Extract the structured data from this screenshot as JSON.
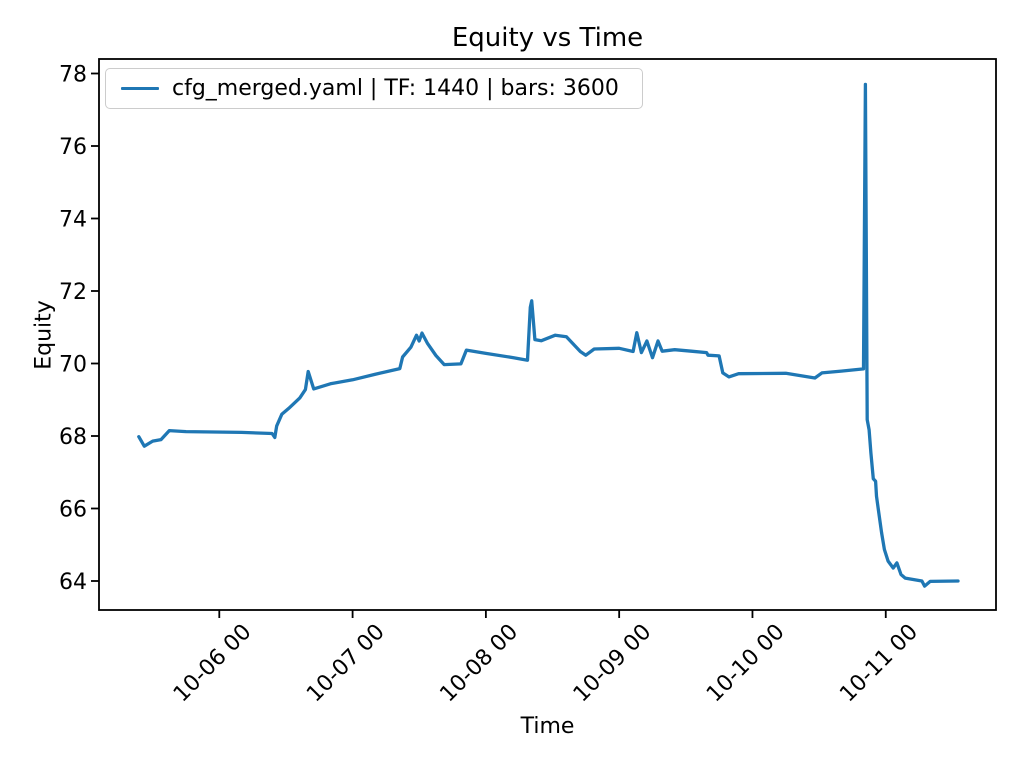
{
  "chart_data": {
    "type": "line",
    "title": "Equity vs Time",
    "xlabel": "Time",
    "ylabel": "Equity",
    "grid": false,
    "legend_position": "upper left",
    "x_tick_labels": [
      "10-06 00",
      "10-07 00",
      "10-08 00",
      "10-09 00",
      "10-10 00",
      "10-11 00"
    ],
    "y_ticks": [
      64,
      66,
      68,
      70,
      72,
      74,
      76,
      78
    ],
    "ylim": [
      63.2,
      78.4
    ],
    "xlim_hours_since_10_05_00": [
      2.34,
      163.85
    ],
    "series": [
      {
        "name": "cfg_merged.yaml | TF: 1440 | bars: 3600",
        "color": "#1f77b4",
        "line_width": 3.3,
        "points": [
          [
            "10-05 09:30",
            67.98
          ],
          [
            "10-05 10:30",
            67.72
          ],
          [
            "10-05 12:00",
            67.86
          ],
          [
            "10-05 13:30",
            67.9
          ],
          [
            "10-05 15:00",
            68.15
          ],
          [
            "10-05 18:00",
            68.12
          ],
          [
            "10-06 04:00",
            68.1
          ],
          [
            "10-06 09:30",
            68.07
          ],
          [
            "10-06 10:00",
            67.96
          ],
          [
            "10-06 10:20",
            68.28
          ],
          [
            "10-06 11:15",
            68.6
          ],
          [
            "10-06 12:30",
            68.76
          ],
          [
            "10-06 14:30",
            69.05
          ],
          [
            "10-06 15:30",
            69.28
          ],
          [
            "10-06 16:00",
            69.78
          ],
          [
            "10-06 17:00",
            69.3
          ],
          [
            "10-06 20:00",
            69.44
          ],
          [
            "10-07 00:00",
            69.55
          ],
          [
            "10-07 04:00",
            69.7
          ],
          [
            "10-07 08:30",
            69.86
          ],
          [
            "10-07 09:00",
            70.18
          ],
          [
            "10-07 10:30",
            70.45
          ],
          [
            "10-07 11:30",
            70.78
          ],
          [
            "10-07 12:00",
            70.62
          ],
          [
            "10-07 12:30",
            70.84
          ],
          [
            "10-07 13:30",
            70.55
          ],
          [
            "10-07 15:00",
            70.22
          ],
          [
            "10-07 16:30",
            69.97
          ],
          [
            "10-07 19:30",
            69.99
          ],
          [
            "10-07 20:30",
            70.37
          ],
          [
            "10-08 00:00",
            70.28
          ],
          [
            "10-08 05:00",
            70.16
          ],
          [
            "10-08 07:30",
            70.09
          ],
          [
            "10-08 08:00",
            71.55
          ],
          [
            "10-08 08:15",
            71.73
          ],
          [
            "10-08 08:50",
            70.66
          ],
          [
            "10-08 10:00",
            70.63
          ],
          [
            "10-08 12:30",
            70.78
          ],
          [
            "10-08 14:30",
            70.74
          ],
          [
            "10-08 17:00",
            70.33
          ],
          [
            "10-08 18:00",
            70.23
          ],
          [
            "10-08 19:30",
            70.4
          ],
          [
            "10-09 00:00",
            70.42
          ],
          [
            "10-09 02:30",
            70.33
          ],
          [
            "10-09 03:10",
            70.85
          ],
          [
            "10-09 04:00",
            70.3
          ],
          [
            "10-09 05:00",
            70.62
          ],
          [
            "10-09 06:00",
            70.16
          ],
          [
            "10-09 07:00",
            70.62
          ],
          [
            "10-09 07:45",
            70.34
          ],
          [
            "10-09 10:00",
            70.38
          ],
          [
            "10-09 13:00",
            70.34
          ],
          [
            "10-09 15:45",
            70.3
          ],
          [
            "10-09 16:00",
            70.23
          ],
          [
            "10-09 18:00",
            70.21
          ],
          [
            "10-09 18:40",
            69.74
          ],
          [
            "10-09 19:45",
            69.63
          ],
          [
            "10-09 21:30",
            69.72
          ],
          [
            "10-10 06:00",
            69.73
          ],
          [
            "10-10 11:15",
            69.6
          ],
          [
            "10-10 12:30",
            69.74
          ],
          [
            "10-10 16:00",
            69.79
          ],
          [
            "10-10 20:00",
            69.85
          ],
          [
            "10-10 20:20",
            77.7
          ],
          [
            "10-10 20:40",
            68.45
          ],
          [
            "10-10 21:00",
            68.17
          ],
          [
            "10-10 21:20",
            67.53
          ],
          [
            "10-10 21:45",
            66.82
          ],
          [
            "10-10 22:10",
            66.75
          ],
          [
            "10-10 22:20",
            66.34
          ],
          [
            "10-10 22:45",
            65.88
          ],
          [
            "10-10 23:15",
            65.33
          ],
          [
            "10-10 23:45",
            64.87
          ],
          [
            "10-11 00:25",
            64.55
          ],
          [
            "10-11 01:20",
            64.36
          ],
          [
            "10-11 02:00",
            64.5
          ],
          [
            "10-11 02:45",
            64.18
          ],
          [
            "10-11 03:30",
            64.08
          ],
          [
            "10-11 06:30",
            64.0
          ],
          [
            "10-11 07:00",
            63.86
          ],
          [
            "10-11 08:00",
            63.99
          ],
          [
            "10-11 13:00",
            64.0
          ]
        ]
      }
    ],
    "colors": {
      "line": "#1f77b4",
      "text": "#000000",
      "spine": "#000000",
      "legend_border": "#cccccc",
      "background": "#ffffff"
    }
  }
}
